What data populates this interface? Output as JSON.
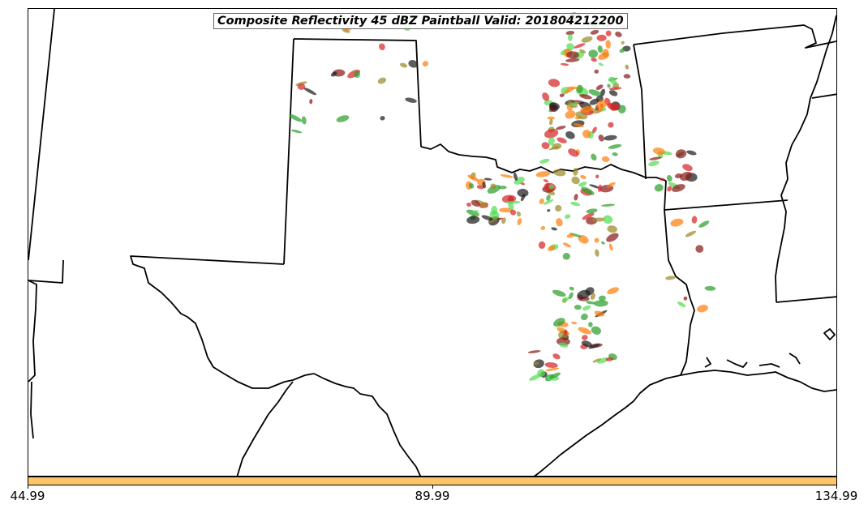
{
  "title": "Composite Reflectivity 45 dBZ Paintball Valid: 201804212200",
  "colorbar": {
    "color": "#fdc46a",
    "ticks": [
      "44.99",
      "89.99",
      "134.99"
    ]
  },
  "map": {
    "region": "Southern Plains (Texas, Oklahoma, New Mexico, Louisiana, Arkansas)",
    "boundary_color": "#000000",
    "paintball_colors": [
      "#d62728",
      "#ff7f0e",
      "#2ca02c",
      "#8c1c1c",
      "#9a8a2a",
      "#1f1f1f",
      "#55dd55"
    ]
  }
}
